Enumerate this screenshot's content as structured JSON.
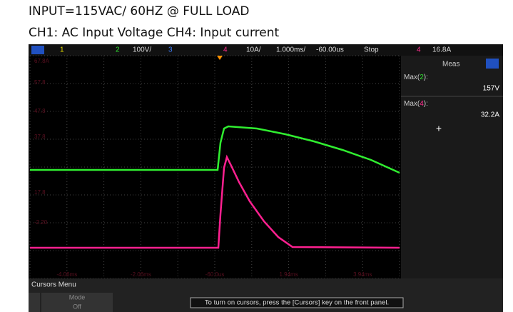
{
  "header": {
    "line1": "INPUT=115VAC/ 60HZ @ FULL LOAD",
    "line2": "CH1: AC Input Voltage CH4: Input current"
  },
  "topbar": {
    "ch1": "1",
    "ch2": "2",
    "ch2_scale": "100V/",
    "ch3": "3",
    "ch4": "4",
    "ch4_scale": "10A/",
    "timebase": "1.000ms/",
    "delay": "-60.00us",
    "status": "Stop",
    "trig_ch": "4",
    "trig_level": "16.8A"
  },
  "grid_labels": {
    "left": [
      "67.8A",
      "57.8",
      "47.8",
      "37.8",
      "17.8",
      "-2.20"
    ],
    "bottom": [
      "-4.06ms",
      "-2.06ms",
      "-60.0us",
      "1.94ms",
      "3.94ms"
    ]
  },
  "panel": {
    "title": "Meas",
    "measurements": [
      {
        "prefix": "Max(",
        "channel": "2",
        "suffix": "):",
        "value": "157V"
      },
      {
        "prefix": "Max(",
        "channel": "4",
        "suffix": "):",
        "value": "32.2A"
      }
    ],
    "add": "+"
  },
  "menu": {
    "title": "Cursors Menu",
    "button_label": "Mode",
    "button_value": "Off",
    "message": "To turn on cursors, press the [Cursors] key on the front panel."
  }
}
